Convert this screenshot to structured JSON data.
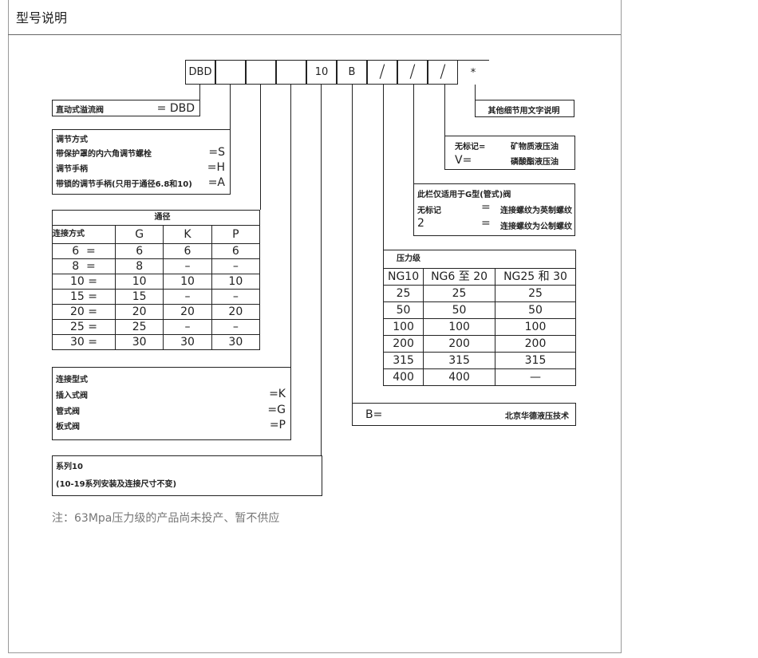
{
  "header": {
    "title": "型号说明"
  },
  "code_cells": [
    "DBD",
    "",
    "",
    "",
    "10",
    "B",
    "/",
    "/",
    "/",
    "*"
  ],
  "valve_type": {
    "label": "直动式溢流阀",
    "code": "= DBD"
  },
  "adjustment": {
    "title": "调节方式",
    "items": [
      {
        "label": "带保护罩的内六角调节螺栓",
        "code": "=S"
      },
      {
        "label": "调节手柄",
        "code": "=H"
      },
      {
        "label": "带锁的调节手柄(只用于通径6.8和10)",
        "code": "=A"
      }
    ]
  },
  "diameter_table": {
    "title": "通径",
    "headers": [
      "连接方式",
      "G",
      "K",
      "P"
    ],
    "rows": [
      [
        "6  =",
        "6",
        "6",
        "6"
      ],
      [
        "8  =",
        "8",
        "–",
        "–"
      ],
      [
        "10 =",
        "10",
        "10",
        "10"
      ],
      [
        "15 =",
        "15",
        "–",
        "–"
      ],
      [
        "20 =",
        "20",
        "20",
        "20"
      ],
      [
        "25 =",
        "25",
        "–",
        "–"
      ],
      [
        "30 =",
        "30",
        "30",
        "30"
      ]
    ]
  },
  "connection": {
    "title": "连接型式",
    "items": [
      {
        "label": "插入式阀",
        "code": "=K"
      },
      {
        "label": "管式阀",
        "code": "=G"
      },
      {
        "label": "板式阀",
        "code": "=P"
      }
    ]
  },
  "series": {
    "line1": "系列10",
    "line2": "(10-19系列安装及连接尺寸不变)"
  },
  "note": "注：63Mpa压力级的产品尚未投产、暂不供应",
  "other": {
    "label": "其他细节用文字说明"
  },
  "fluid": {
    "items": [
      {
        "label": "无标记=",
        "value": "矿物质液压油"
      },
      {
        "label": "V=",
        "value": "磷酸酯液压油"
      }
    ]
  },
  "thread": {
    "title": "此栏仅适用于G型(管式)阀",
    "items": [
      {
        "label": "无标记",
        "eq": "=",
        "value": "连接螺纹为英制螺纹"
      },
      {
        "label": "2",
        "eq": "=",
        "value": "连接螺纹为公制螺纹"
      }
    ]
  },
  "pressure_table": {
    "title": "压力级",
    "headers": [
      "NG10",
      "NG6 至 20",
      "NG25 和 30"
    ],
    "rows": [
      [
        "25",
        "25",
        "25"
      ],
      [
        "50",
        "50",
        "50"
      ],
      [
        "100",
        "100",
        "100"
      ],
      [
        "200",
        "200",
        "200"
      ],
      [
        "315",
        "315",
        "315"
      ],
      [
        "400",
        "400",
        "—"
      ]
    ]
  },
  "brand": {
    "label": "B=",
    "value": "北京华德液压技术"
  }
}
